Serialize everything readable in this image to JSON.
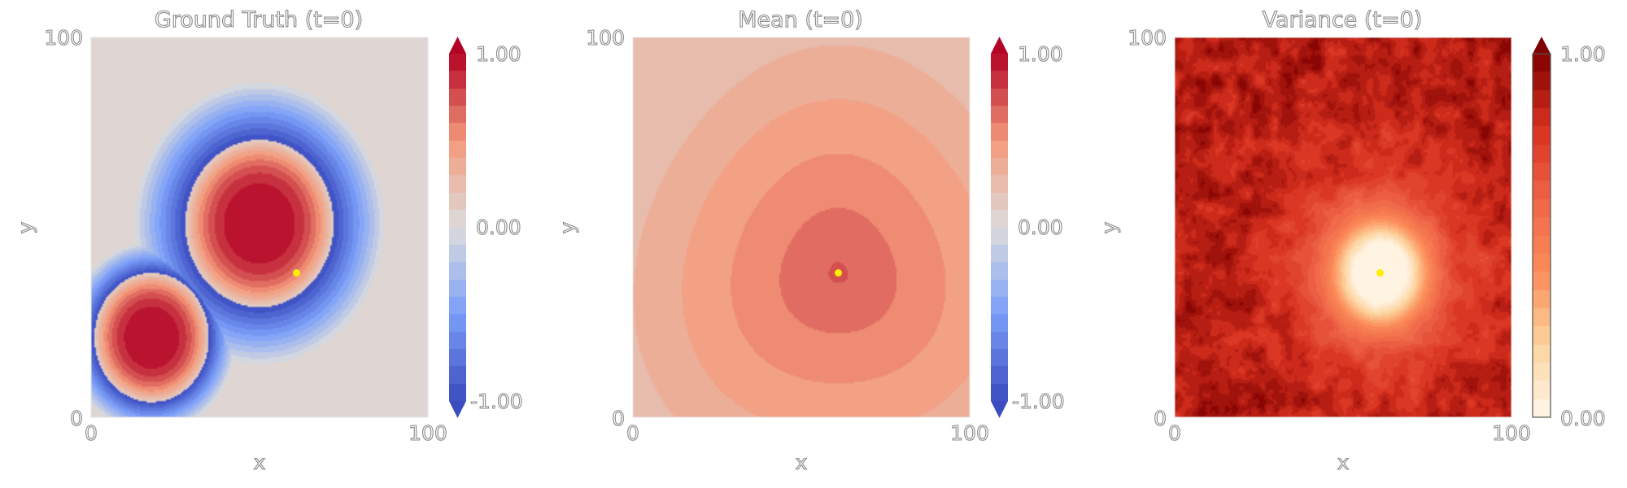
{
  "chart_data": [
    {
      "type": "heatmap",
      "title": "Ground Truth (t=0)",
      "xlabel": "x",
      "ylabel": "y",
      "xlim": [
        0,
        100
      ],
      "ylim": [
        0,
        100
      ],
      "x_ticks": [
        "0",
        "100"
      ],
      "y_ticks": [
        "0",
        "100"
      ],
      "colormap": "coolwarm",
      "colorbar": {
        "min": -1.0,
        "max": 1.0,
        "ticks": [
          "-1.00",
          "0.00",
          "1.00"
        ],
        "extend": "both"
      },
      "marker": {
        "x": 61,
        "y": 38,
        "color": "#ffee00"
      },
      "features": [
        {
          "kind": "positive-blob",
          "cx": 50,
          "cy": 51,
          "r_core": 22,
          "r_ring": 37
        },
        {
          "kind": "positive-blob",
          "cx": 18,
          "cy": 21,
          "r_core": 17,
          "r_ring": 25
        }
      ]
    },
    {
      "type": "heatmap",
      "title": "Mean (t=0)",
      "xlabel": "x",
      "ylabel": "y",
      "xlim": [
        0,
        100
      ],
      "ylim": [
        0,
        100
      ],
      "x_ticks": [
        "0",
        "100"
      ],
      "y_ticks": [
        "0",
        "100"
      ],
      "colormap": "coolwarm",
      "colorbar": {
        "min": -1.0,
        "max": 1.0,
        "ticks": [
          "-1.00",
          "0.00",
          "1.00"
        ],
        "extend": "both"
      },
      "marker": {
        "x": 61,
        "y": 38,
        "color": "#ffee00"
      },
      "peak": {
        "x": 61,
        "y": 38,
        "value": 0.72,
        "edge_value": 0.22
      }
    },
    {
      "type": "heatmap",
      "title": "Variance (t=0)",
      "xlabel": "x",
      "ylabel": "y",
      "xlim": [
        0,
        100
      ],
      "ylim": [
        0,
        100
      ],
      "x_ticks": [
        "0",
        "100"
      ],
      "y_ticks": [
        "0",
        "100"
      ],
      "colormap": "OrRd",
      "colorbar": {
        "min": 0.0,
        "max": 1.0,
        "ticks": [
          "0.00",
          "1.00"
        ],
        "extend": "max"
      },
      "marker": {
        "x": 61,
        "y": 38,
        "color": "#ffee00"
      },
      "trough": {
        "x": 61,
        "y": 38,
        "value": 0.0,
        "background_value": 0.93
      }
    }
  ],
  "colors": {
    "coolwarm_low": "#3b4cc0",
    "coolwarm_mid": "#dddddd",
    "coolwarm_high": "#b40426",
    "orrd_low": "#fff7ec",
    "orrd_high": "#7f0000",
    "marker": "#ffee00"
  }
}
